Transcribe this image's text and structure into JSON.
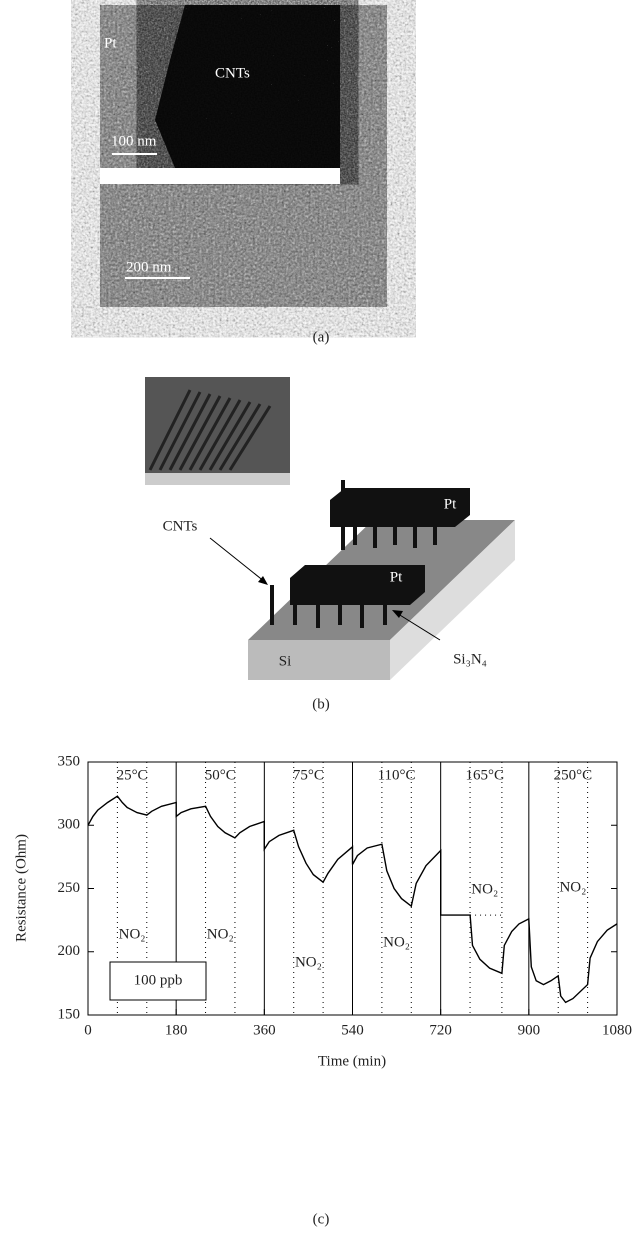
{
  "panel_a": {
    "labels": [
      "Pt",
      "CNTs",
      "100 nm",
      "200 nm"
    ],
    "caption": "(a)"
  },
  "panel_b": {
    "labels": [
      "CNTs",
      "Pt",
      "Pt",
      "Si",
      "Si₃N₄"
    ],
    "caption": "(b)"
  },
  "chart_data": {
    "type": "line",
    "caption": "(c)",
    "xlabel": "Time (min)",
    "ylabel": "Resistance (Ohm)",
    "color": "#000000",
    "x": [
      0,
      10,
      20,
      40,
      60,
      70,
      80,
      100,
      120,
      130,
      150,
      180,
      180,
      190,
      210,
      240,
      250,
      265,
      280,
      300,
      310,
      330,
      360,
      360,
      370,
      390,
      420,
      430,
      445,
      460,
      480,
      490,
      510,
      540,
      540,
      550,
      570,
      600,
      610,
      625,
      640,
      660,
      670,
      690,
      720,
      720,
      780,
      785,
      800,
      820,
      845,
      850,
      865,
      880,
      900,
      905,
      915,
      930,
      945,
      960,
      965,
      975,
      990,
      1020,
      1025,
      1040,
      1060,
      1080
    ],
    "values": [
      300,
      307,
      312,
      318,
      323,
      318,
      314,
      310,
      308,
      311,
      315,
      318,
      307,
      310,
      313,
      315,
      307,
      299,
      294,
      290,
      294,
      299,
      303,
      281,
      287,
      292,
      296,
      283,
      270,
      261,
      255,
      262,
      273,
      283,
      269,
      276,
      282,
      285,
      264,
      250,
      242,
      236,
      254,
      268,
      280,
      229,
      229,
      205,
      194,
      187,
      183,
      205,
      216,
      222,
      226,
      188,
      177,
      174,
      177,
      181,
      165,
      160,
      163,
      174,
      195,
      208,
      217,
      222
    ],
    "xlim": [
      0,
      1080
    ],
    "ylim": [
      150,
      350
    ],
    "xticks": [
      0,
      180,
      360,
      540,
      720,
      900,
      1080
    ],
    "yticks": [
      150,
      200,
      250,
      300,
      350
    ],
    "separators": [
      180,
      360,
      540,
      720,
      900
    ],
    "dotted_lines": [
      60,
      120,
      240,
      300,
      420,
      480,
      600,
      660,
      780,
      845,
      960,
      1020
    ],
    "hline": {
      "y": 229,
      "xmin": 780,
      "xmax": 845
    },
    "segment_labels": [
      "25°C",
      "50°C",
      "75°C",
      "110°C",
      "165°C",
      "250°C"
    ],
    "gas_labels": [
      "NO₂",
      "NO₂",
      "NO₂",
      "NO₂",
      "NO₂",
      "NO₂"
    ],
    "box_label": "100 ppb"
  }
}
